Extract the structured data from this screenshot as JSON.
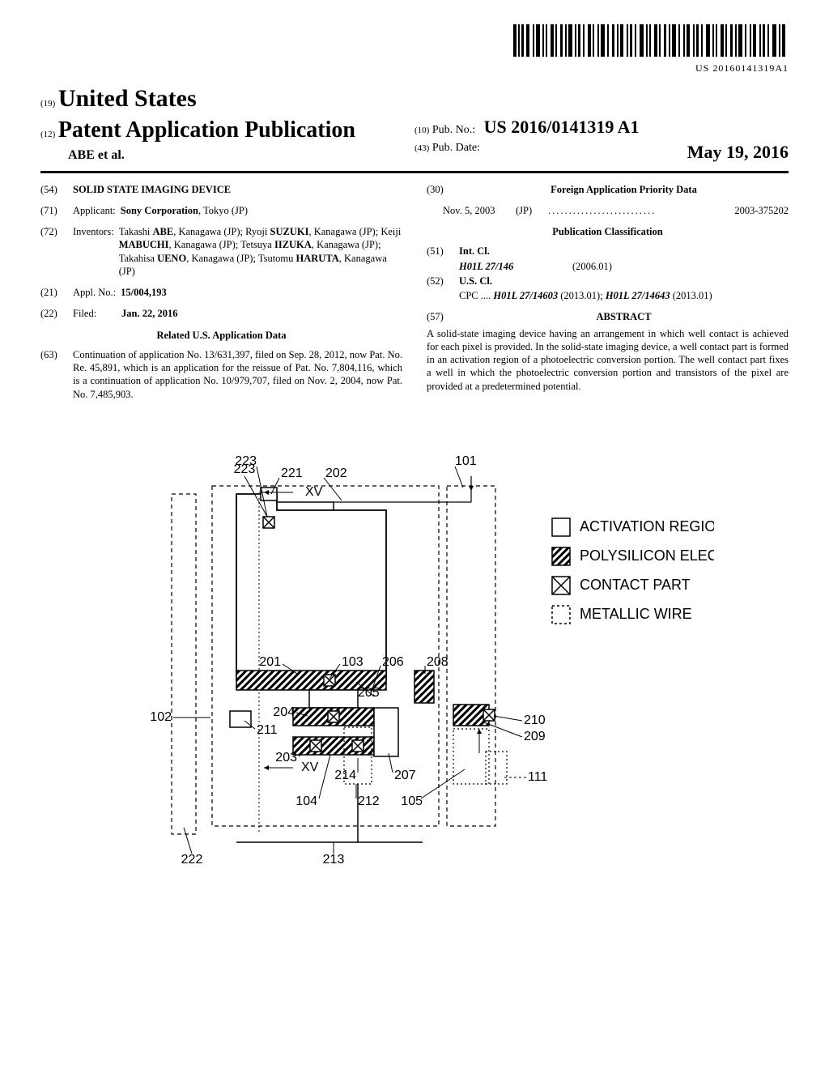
{
  "barcode_text": "US 20160141319A1",
  "header": {
    "country_code": "(19)",
    "country": "United States",
    "doc_type_code": "(12)",
    "doc_type": "Patent Application Publication",
    "authors": "ABE et al.",
    "pubno_code": "(10)",
    "pubno_label": "Pub. No.:",
    "pubno": "US 2016/0141319 A1",
    "pubdate_code": "(43)",
    "pubdate_label": "Pub. Date:",
    "pubdate": "May 19, 2016"
  },
  "left": {
    "title_code": "(54)",
    "title": "SOLID STATE IMAGING DEVICE",
    "applicant_code": "(71)",
    "applicant_label": "Applicant:",
    "applicant": "Sony Corporation",
    "applicant_loc": ", Tokyo (JP)",
    "inventors_code": "(72)",
    "inventors_label": "Inventors:",
    "inventors": "Takashi ABE, Kanagawa (JP); Ryoji SUZUKI, Kanagawa (JP); Keiji MABUCHI, Kanagawa (JP); Tetsuya IIZUKA, Kanagawa (JP); Takahisa UENO, Kanagawa (JP); Tsutomu HARUTA, Kanagawa (JP)",
    "applno_code": "(21)",
    "applno_label": "Appl. No.:",
    "applno": "15/004,193",
    "filed_code": "(22)",
    "filed_label": "Filed:",
    "filed": "Jan. 22, 2016",
    "related_head": "Related U.S. Application Data",
    "related_code": "(63)",
    "related": "Continuation of application No. 13/631,397, filed on Sep. 28, 2012, now Pat. No. Re. 45,891, which is an application for the reissue of Pat. No. 7,804,116, which is a continuation of application No. 10/979,707, filed on Nov. 2, 2004, now Pat. No. 7,485,903."
  },
  "right": {
    "foreign_code": "(30)",
    "foreign_head": "Foreign Application Priority Data",
    "foreign_date": "Nov. 5, 2003",
    "foreign_country": "(JP)",
    "foreign_num": "2003-375202",
    "class_head": "Publication Classification",
    "intcl_code": "(51)",
    "intcl_label": "Int. Cl.",
    "intcl_sym": "H01L 27/146",
    "intcl_date": "(2006.01)",
    "uscl_code": "(52)",
    "uscl_label": "U.S. Cl.",
    "cpc_label": "CPC",
    "cpc_body": "H01L 27/14603 (2013.01); H01L 27/14643 (2013.01)",
    "abstract_code": "(57)",
    "abstract_head": "ABSTRACT",
    "abstract": "A solid-state imaging device having an arrangement in which well contact is achieved for each pixel is provided. In the solid-state imaging device, a well contact part is formed in an activation region of a photoelectric conversion portion. The well contact part fixes a well in which the photoelectric conversion portion and transistors of the pixel are provided at a predetermined potential."
  },
  "figure": {
    "legend": {
      "activation": "ACTIVATION REGION",
      "poly": "POLYSILICON ELECTRODE",
      "contact": "CONTACT PART",
      "wire": "METALLIC WIRE"
    },
    "labels": {
      "l223": "223",
      "l221": "221",
      "l202": "202",
      "l101": "101",
      "l201": "201",
      "l103": "103",
      "l206": "206",
      "l208": "208",
      "l204": "204",
      "l205": "205",
      "l211": "211",
      "l210": "210",
      "l209": "209",
      "l102": "102",
      "l203": "203",
      "l214": "214",
      "l207": "207",
      "l104": "104",
      "l212": "212",
      "l105": "105",
      "l111": "111",
      "l222": "222",
      "l213": "213",
      "lxv1": "XV",
      "lxv2": "XV"
    },
    "style": {
      "stroke": "#000000",
      "dash": "5,4",
      "dense_dash": "2,3",
      "font_family": "Arial, Helvetica, sans-serif",
      "label_fontsize": 16,
      "legend_fontsize": 18,
      "bg": "#ffffff"
    }
  }
}
